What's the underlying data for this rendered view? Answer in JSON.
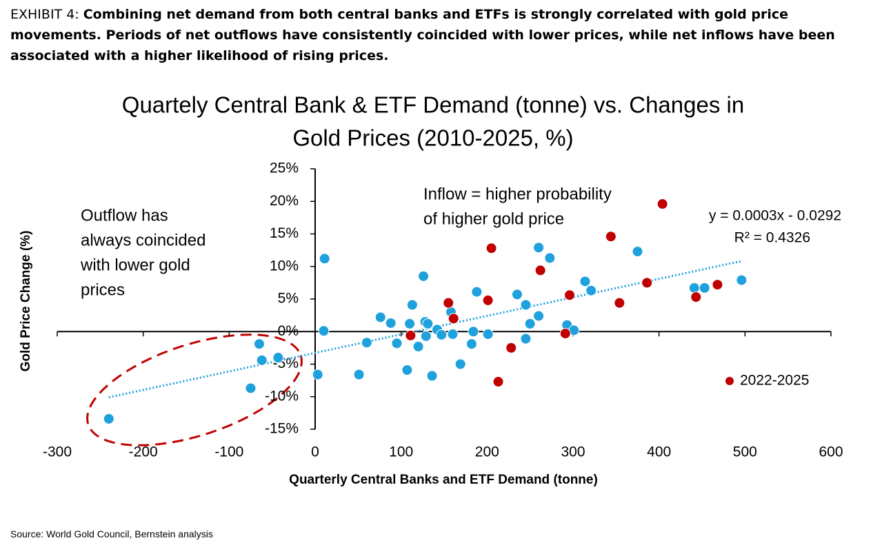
{
  "exhibit": {
    "label": "EXHIBIT 4:",
    "text": "Combining net demand from both central banks and ETFs is strongly correlated with gold price movements. Periods of net outflows have consistently coincided with lower prices, while net inflows have been associated with a higher likelihood of rising prices."
  },
  "chart_data": {
    "type": "scatter",
    "title": [
      "Quartely Central Bank & ETF Demand (tonne) vs. Changes in",
      "Gold Prices (2010-2025, %)"
    ],
    "x_label": "Quarterly Central Banks and ETF Demand (tonne)",
    "y_label": "Gold Price Change (%)",
    "xlim": [
      -300,
      600
    ],
    "xticks": [
      -300,
      -200,
      -100,
      0,
      100,
      200,
      300,
      400,
      500,
      600
    ],
    "ylim": [
      -15,
      25
    ],
    "yticks": [
      {
        "value": -15,
        "label": "-15%"
      },
      {
        "value": -10,
        "label": "-10%"
      },
      {
        "value": -5,
        "label": "-5%"
      },
      {
        "value": 0,
        "label": "0%"
      },
      {
        "value": 5,
        "label": "5%"
      },
      {
        "value": 10,
        "label": "10%"
      },
      {
        "value": 15,
        "label": "15%"
      },
      {
        "value": 20,
        "label": "20%"
      },
      {
        "value": 25,
        "label": "25%"
      }
    ],
    "series": [
      {
        "color": "#1ea1dc",
        "x": [
          -240,
          -65,
          -62,
          -75,
          -43,
          11,
          10,
          3,
          51,
          60,
          76,
          88,
          95,
          107,
          110,
          113,
          120,
          126,
          128,
          131,
          129,
          136,
          142,
          147,
          158,
          160,
          169,
          184,
          182,
          188,
          201,
          235,
          245,
          245,
          250,
          260,
          260,
          273,
          293,
          301,
          314,
          321,
          375,
          441,
          453,
          496
        ],
        "y": [
          -13.4,
          -1.9,
          -4.4,
          -8.7,
          -4.0,
          11.2,
          0.1,
          -6.6,
          -6.6,
          -1.7,
          2.2,
          1.3,
          -1.8,
          -5.9,
          1.2,
          4.1,
          -2.3,
          8.5,
          1.5,
          1.2,
          -0.7,
          -6.8,
          0.3,
          -0.5,
          3.0,
          -0.4,
          -5.0,
          0,
          -1.9,
          6.1,
          -0.4,
          5.7,
          4.1,
          -1.1,
          1.2,
          2.4,
          12.9,
          11.3,
          1.0,
          0.2,
          7.7,
          6.3,
          12.3,
          6.7,
          6.7,
          7.9
        ]
      },
      {
        "name": "2022-2025",
        "color": "#c00000",
        "x": [
          111,
          155,
          161,
          205,
          201,
          213,
          228,
          262,
          296,
          291,
          344,
          354,
          386,
          404,
          443,
          468
        ],
        "y": [
          -0.6,
          4.4,
          2.0,
          12.8,
          4.8,
          -7.7,
          -2.5,
          9.4,
          5.6,
          -0.3,
          14.6,
          4.4,
          7.5,
          19.6,
          5.3,
          7.2
        ]
      }
    ],
    "trendline": {
      "color": "#1ea1dc",
      "x": [
        -240,
        495
      ],
      "y": [
        -10.1,
        10.8
      ],
      "equation": "y = 0.0003x - 0.0292",
      "r2": "R² = 0.4326"
    },
    "annotations": [
      {
        "lines": [
          "Outflow has",
          "always coincided",
          "with lower gold",
          "prices"
        ]
      },
      {
        "lines": [
          "Inflow = higher probability",
          "of higher gold price"
        ]
      }
    ]
  },
  "source": "Source: World Gold Council, Bernstein analysis"
}
